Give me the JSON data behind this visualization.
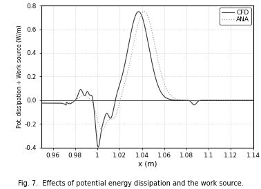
{
  "xlabel": "x (m)",
  "ylabel": "Pot. dissipation + Work source (W/m)",
  "xlim": [
    0.95,
    1.14
  ],
  "ylim": [
    -0.4,
    0.8
  ],
  "xticks": [
    0.96,
    0.98,
    1.0,
    1.02,
    1.04,
    1.06,
    1.08,
    1.1,
    1.12,
    1.14
  ],
  "xtick_labels": [
    "0.96",
    "0.98",
    "1",
    "1.02",
    "1.04",
    "1.06",
    "1.08",
    "1.1",
    "1.12",
    "1.14"
  ],
  "yticks": [
    -0.4,
    -0.2,
    0.0,
    0.2,
    0.4,
    0.6,
    0.8
  ],
  "grid_color": "#bbbbbb",
  "line_color_cfd": "#333333",
  "line_color_ana": "#999999",
  "caption": "Fig. 7.  Effects of potential energy dissipation and the work source.",
  "legend_labels": [
    "CFD",
    "ANA"
  ],
  "background_color": "#ffffff"
}
